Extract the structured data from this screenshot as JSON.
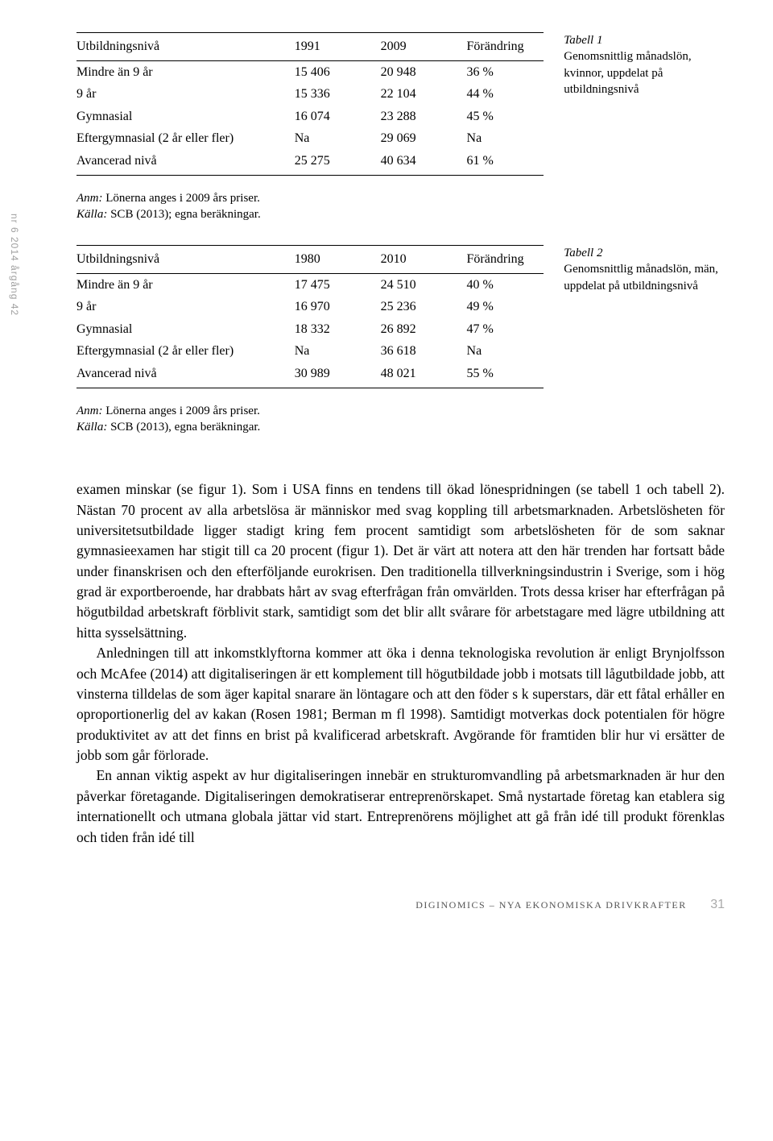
{
  "sidebar_marker": "nr 6 2014 årgång 42",
  "table1": {
    "caption_title": "Tabell 1",
    "caption_text": "Genomsnittlig månadslön, kvinnor, uppdelat på utbildningsnivå",
    "columns": [
      "Utbildningsnivå",
      "1991",
      "2009",
      "Förändring"
    ],
    "rows": [
      [
        "Mindre än 9 år",
        "15 406",
        "20 948",
        "36 %"
      ],
      [
        "9 år",
        "15 336",
        "22 104",
        "44 %"
      ],
      [
        "Gymnasial",
        "16 074",
        "23 288",
        "45 %"
      ],
      [
        "Eftergymnasial (2 år eller fler)",
        "Na",
        "29 069",
        "Na"
      ],
      [
        "Avancerad nivå",
        "25 275",
        "40 634",
        "61 %"
      ]
    ]
  },
  "note1_em": "Anm:",
  "note1_a": " Lönerna anges i 2009 års priser.",
  "note1_em2": "Källa:",
  "note1_b": " SCB (2013); egna beräkningar.",
  "table2": {
    "caption_title": "Tabell 2",
    "caption_text": "Genomsnittlig månadslön, män, uppdelat på utbildningsnivå",
    "columns": [
      "Utbildningsnivå",
      "1980",
      "2010",
      "Förändring"
    ],
    "rows": [
      [
        "Mindre än 9 år",
        "17 475",
        "24 510",
        "40 %"
      ],
      [
        "9 år",
        "16 970",
        "25 236",
        "49 %"
      ],
      [
        "Gymnasial",
        "18 332",
        "26 892",
        "47 %"
      ],
      [
        "Eftergymnasial (2 år eller fler)",
        "Na",
        "36 618",
        "Na"
      ],
      [
        "Avancerad nivå",
        "30 989",
        "48 021",
        "55 %"
      ]
    ]
  },
  "note2_em": "Anm:",
  "note2_a": " Lönerna anges i 2009 års priser.",
  "note2_em2": "Källa:",
  "note2_b": " SCB (2013), egna beräkningar.",
  "para1": "examen minskar (se figur 1). Som i USA finns en tendens till ökad lönespridningen (se tabell 1 och tabell 2). Nästan 70 procent av alla arbetslösa är människor med svag koppling till arbetsmarknaden. Arbetslösheten för universitetsutbildade ligger stadigt kring fem procent samtidigt som arbetslösheten för de som saknar gymnasieexamen har stigit till ca 20 procent (figur 1). Det är värt att notera att den här trenden har fortsatt både under finanskrisen och den efterföljande eurokrisen. Den traditionella tillverkningsindustrin i Sverige, som i hög grad är exportberoende, har drabbats hårt av svag efterfrågan från omvärlden. Trots dessa kriser har efterfrågan på högutbildad arbetskraft förblivit stark, samtidigt som det blir allt svårare för arbetstagare med lägre utbildning att hitta sysselsättning.",
  "para2": "Anledningen till att inkomstklyftorna kommer att öka i denna teknologiska revolution är enligt Brynjolfsson och McAfee (2014) att digitaliseringen är ett komplement till högutbildade jobb i motsats till lågutbildade jobb, att vinsterna tilldelas de som äger kapital snarare än löntagare och att den föder s k superstars, där ett fåtal erhåller en oproportionerlig del av kakan (Rosen 1981; Berman m fl 1998). Samtidigt motverkas dock potentialen för högre produktivitet av att det finns en brist på kvalificerad arbetskraft. Avgörande för framtiden blir hur vi ersätter de jobb som går förlorade.",
  "para3": "En annan viktig aspekt av hur digitaliseringen innebär en strukturomvandling på arbetsmarknaden är hur den påverkar företagande. Digitaliseringen demokratiserar entreprenörskapet. Små nystartade företag kan etablera sig internationellt och utmana globala jättar vid start. Entreprenörens möjlighet att gå från idé till produkt förenklas och tiden från idé till",
  "footer_text": "DIGINOMICS – NYA EKONOMISKA DRIVKRAFTER",
  "footer_page": "31"
}
